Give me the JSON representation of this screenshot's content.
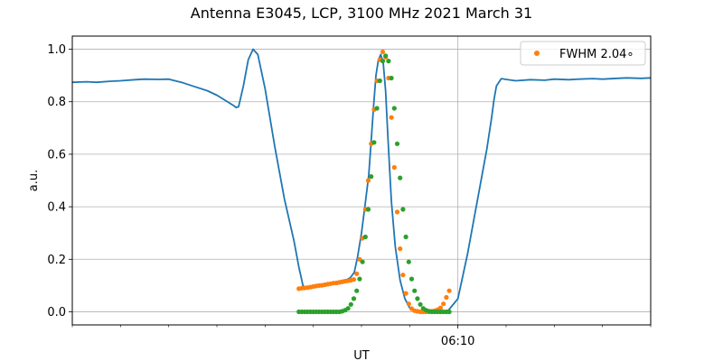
{
  "chart_data": {
    "type": "line",
    "title": "Antenna E3045, LCP, 3100 MHz 2021 March 31",
    "xlabel": "UT",
    "ylabel": "a.u.",
    "xlim": [
      0,
      120
    ],
    "ylim": [
      -0.05,
      1.05
    ],
    "yticks": [
      0.0,
      0.2,
      0.4,
      0.6,
      0.8,
      1.0
    ],
    "ytick_labels": [
      "0.0",
      "0.2",
      "0.4",
      "0.6",
      "0.8",
      "1.0"
    ],
    "x_major_ticks": [
      {
        "x": 80,
        "label": "06:10"
      }
    ],
    "x_minor_ticks": [
      0,
      10,
      20,
      30,
      40,
      50,
      60,
      70,
      80,
      90,
      100,
      110,
      120
    ],
    "grid": true,
    "legend": {
      "position": "upper right",
      "entries": [
        {
          "label": "FWHM 2.04$^\\circ$",
          "color": "#ff7f0e"
        }
      ]
    },
    "colors": {
      "signal": "#1f77b4",
      "fit": "#ff7f0e",
      "model": "#2ca02c",
      "grid": "#b0b0b0"
    },
    "series": [
      {
        "kind": "line",
        "color": "#1f77b4",
        "x": [
          0,
          3,
          5,
          8,
          10,
          13,
          15,
          18,
          20,
          23,
          25,
          28,
          30,
          32,
          33.5,
          34,
          34.5,
          35.5,
          36.5,
          37.5,
          38.5,
          40,
          42,
          44,
          46,
          47,
          47.5,
          48,
          49,
          50,
          51,
          52,
          53,
          54,
          55,
          56,
          57,
          57.7,
          58.5,
          59.2,
          60,
          60.7,
          61.5,
          62,
          62.5,
          63,
          63.5,
          64,
          64.5,
          65,
          65.5,
          66.2,
          67,
          68,
          69,
          70,
          71,
          72,
          74,
          76,
          78,
          80,
          82,
          84,
          86,
          87,
          87.5,
          88,
          89,
          90,
          92,
          95,
          98,
          100,
          103,
          105,
          108,
          110,
          113,
          115,
          118,
          120
        ],
        "y": [
          0.874,
          0.876,
          0.874,
          0.878,
          0.88,
          0.884,
          0.886,
          0.885,
          0.886,
          0.872,
          0.86,
          0.842,
          0.825,
          0.802,
          0.785,
          0.778,
          0.781,
          0.86,
          0.96,
          1.0,
          0.98,
          0.85,
          0.63,
          0.43,
          0.27,
          0.17,
          0.13,
          0.088,
          0.091,
          0.093,
          0.098,
          0.102,
          0.107,
          0.111,
          0.115,
          0.119,
          0.123,
          0.13,
          0.15,
          0.21,
          0.3,
          0.4,
          0.52,
          0.65,
          0.78,
          0.9,
          0.96,
          0.98,
          0.95,
          0.84,
          0.66,
          0.42,
          0.25,
          0.12,
          0.05,
          0.015,
          0.003,
          0.0,
          0.0,
          0.0,
          0.005,
          0.05,
          0.22,
          0.42,
          0.62,
          0.74,
          0.81,
          0.86,
          0.888,
          0.885,
          0.88,
          0.884,
          0.882,
          0.886,
          0.884,
          0.886,
          0.888,
          0.886,
          0.889,
          0.891,
          0.889,
          0.891
        ]
      },
      {
        "kind": "scatter",
        "color": "#ff7f0e",
        "x": [
          47,
          47.6,
          48.2,
          48.8,
          49.4,
          50,
          50.6,
          51.2,
          51.8,
          52.4,
          53,
          53.6,
          54.2,
          54.8,
          55.4,
          56,
          56.6,
          57.2,
          57.8,
          58.4,
          59,
          59.6,
          60.2,
          60.8,
          61.4,
          62,
          62.6,
          63.2,
          63.8,
          64.4,
          65,
          65.6,
          66.2,
          66.8,
          67.4,
          68,
          68.6,
          69.2,
          69.8,
          70.4,
          71,
          71.6,
          72.2,
          72.8,
          73.4,
          74,
          74.6,
          75.2,
          75.8,
          76.4,
          77,
          77.6,
          78.2
        ],
        "y": [
          0.088,
          0.09,
          0.091,
          0.092,
          0.094,
          0.096,
          0.098,
          0.1,
          0.101,
          0.103,
          0.105,
          0.107,
          0.109,
          0.11,
          0.112,
          0.114,
          0.116,
          0.118,
          0.12,
          0.123,
          0.145,
          0.2,
          0.28,
          0.39,
          0.5,
          0.64,
          0.77,
          0.88,
          0.96,
          0.99,
          0.97,
          0.89,
          0.74,
          0.55,
          0.38,
          0.24,
          0.14,
          0.07,
          0.03,
          0.012,
          0.004,
          0.002,
          0.0,
          0.0,
          0.0,
          0.0,
          0.002,
          0.004,
          0.008,
          0.015,
          0.03,
          0.055,
          0.08
        ]
      },
      {
        "kind": "scatter",
        "color": "#2ca02c",
        "x": [
          47,
          47.6,
          48.2,
          48.8,
          49.4,
          50,
          50.6,
          51.2,
          51.8,
          52.4,
          53,
          53.6,
          54.2,
          54.8,
          55.4,
          56,
          56.6,
          57.2,
          57.8,
          58.4,
          59,
          59.6,
          60.2,
          60.8,
          61.4,
          62,
          62.6,
          63.2,
          63.8,
          64.4,
          65,
          65.6,
          66.2,
          66.8,
          67.4,
          68,
          68.6,
          69.2,
          69.8,
          70.4,
          71,
          71.6,
          72.2,
          72.8,
          73.4,
          74,
          74.6,
          75.2,
          75.8,
          76.4,
          77,
          77.6,
          78.2
        ],
        "y": [
          0.0,
          0.0,
          0.0,
          0.0,
          0.0,
          0.0,
          0.0,
          0.0,
          0.0,
          0.0,
          0.0,
          0.0,
          0.0,
          0.0,
          0.0,
          0.002,
          0.006,
          0.013,
          0.028,
          0.05,
          0.08,
          0.125,
          0.19,
          0.285,
          0.39,
          0.515,
          0.645,
          0.775,
          0.88,
          0.955,
          0.975,
          0.955,
          0.89,
          0.775,
          0.64,
          0.51,
          0.39,
          0.285,
          0.19,
          0.125,
          0.08,
          0.05,
          0.028,
          0.013,
          0.006,
          0.002,
          0.0,
          0.0,
          0.0,
          0.0,
          0.0,
          0.0,
          0.0
        ]
      }
    ]
  }
}
